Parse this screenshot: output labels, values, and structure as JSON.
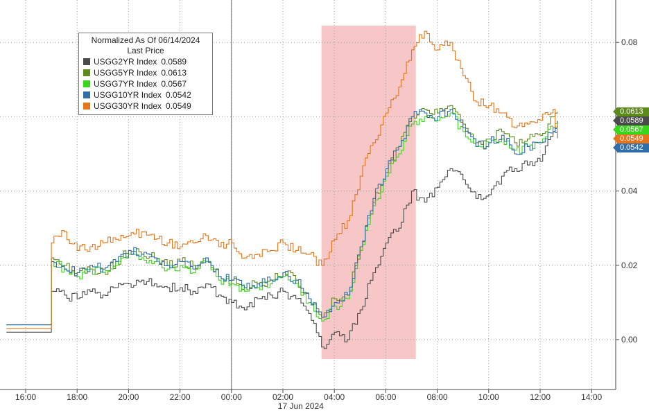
{
  "chart_data": {
    "type": "line",
    "title": "",
    "xlabel": "",
    "ylabel": "",
    "x_ticks": [
      "16:00",
      "18:00",
      "20:00",
      "22:00",
      "00:00",
      "02:00",
      "04:00",
      "06:00",
      "08:00",
      "10:00",
      "12:00",
      "14:00"
    ],
    "date_label": "17 Jun 2024",
    "y_ticks": [
      "0.00",
      "0.02",
      "0.04",
      "0.06",
      "0.08"
    ],
    "y_tick_values": [
      0.0,
      0.02,
      0.04,
      0.06,
      0.08
    ],
    "ylim": [
      -0.015,
      0.095
    ],
    "highlight_region": [
      "03:30",
      "07:10"
    ],
    "highlight_color": "#f7c6c6",
    "grid": true,
    "legend": {
      "placement": "top-left",
      "title_line1": "Normalized As Of 06/14/2024",
      "title_line2": "Last Price"
    },
    "series": [
      {
        "name": "USGG2YR Index",
        "last": "0.0589",
        "color": "#4a4a4a",
        "x": [
          "15:15",
          "17:00",
          "17:30",
          "18:00",
          "18:30",
          "19:00",
          "19:30",
          "20:00",
          "20:30",
          "21:00",
          "21:30",
          "22:00",
          "22:30",
          "23:00",
          "23:30",
          "00:00",
          "00:30",
          "01:00",
          "01:30",
          "02:00",
          "02:30",
          "03:00",
          "03:30",
          "04:00",
          "04:30",
          "05:00",
          "05:30",
          "06:00",
          "06:30",
          "07:00",
          "07:30",
          "08:00",
          "08:30",
          "09:00",
          "09:30",
          "10:00",
          "10:30",
          "11:00",
          "11:30",
          "12:00",
          "12:30",
          "12:40"
        ],
        "values": [
          0.002,
          0.013,
          0.012,
          0.011,
          0.013,
          0.012,
          0.014,
          0.015,
          0.016,
          0.015,
          0.014,
          0.014,
          0.013,
          0.015,
          0.012,
          0.01,
          0.008,
          0.011,
          0.012,
          0.013,
          0.011,
          0.007,
          -0.002,
          0.002,
          0.0,
          0.008,
          0.018,
          0.026,
          0.03,
          0.04,
          0.037,
          0.041,
          0.046,
          0.043,
          0.038,
          0.039,
          0.044,
          0.046,
          0.047,
          0.048,
          0.056,
          0.0589
        ]
      },
      {
        "name": "USGG5YR Index",
        "last": "0.0613",
        "color": "#5d8a1c",
        "x": [
          "15:15",
          "17:00",
          "17:30",
          "18:00",
          "18:30",
          "19:00",
          "19:30",
          "20:00",
          "20:30",
          "21:00",
          "21:30",
          "22:00",
          "22:30",
          "23:00",
          "23:30",
          "00:00",
          "00:30",
          "01:00",
          "01:30",
          "02:00",
          "02:30",
          "03:00",
          "03:30",
          "04:00",
          "04:30",
          "05:00",
          "05:30",
          "06:00",
          "06:30",
          "07:00",
          "07:30",
          "08:00",
          "08:30",
          "09:00",
          "09:30",
          "10:00",
          "10:30",
          "11:00",
          "11:30",
          "12:00",
          "12:30",
          "12:40"
        ],
        "values": [
          0.004,
          0.022,
          0.02,
          0.018,
          0.019,
          0.018,
          0.021,
          0.024,
          0.023,
          0.022,
          0.02,
          0.021,
          0.02,
          0.022,
          0.017,
          0.016,
          0.014,
          0.015,
          0.016,
          0.018,
          0.016,
          0.011,
          0.006,
          0.011,
          0.012,
          0.025,
          0.037,
          0.045,
          0.052,
          0.06,
          0.062,
          0.061,
          0.063,
          0.058,
          0.053,
          0.054,
          0.056,
          0.053,
          0.054,
          0.055,
          0.06,
          0.0613
        ]
      },
      {
        "name": "USGG7YR Index",
        "last": "0.0567",
        "color": "#39d61b",
        "x": [
          "15:15",
          "17:00",
          "17:30",
          "18:00",
          "18:30",
          "19:00",
          "19:30",
          "20:00",
          "20:30",
          "21:00",
          "21:30",
          "22:00",
          "22:30",
          "23:00",
          "23:30",
          "00:00",
          "00:30",
          "01:00",
          "01:30",
          "02:00",
          "02:30",
          "03:00",
          "03:30",
          "04:00",
          "04:30",
          "05:00",
          "05:30",
          "06:00",
          "06:30",
          "07:00",
          "07:30",
          "08:00",
          "08:30",
          "09:00",
          "09:30",
          "10:00",
          "10:30",
          "11:00",
          "11:30",
          "12:00",
          "12:30",
          "12:40"
        ],
        "values": [
          0.004,
          0.021,
          0.019,
          0.017,
          0.019,
          0.018,
          0.02,
          0.023,
          0.022,
          0.021,
          0.019,
          0.02,
          0.018,
          0.021,
          0.016,
          0.015,
          0.013,
          0.014,
          0.015,
          0.017,
          0.015,
          0.01,
          0.005,
          0.009,
          0.011,
          0.024,
          0.036,
          0.044,
          0.05,
          0.058,
          0.06,
          0.059,
          0.061,
          0.056,
          0.052,
          0.053,
          0.054,
          0.051,
          0.052,
          0.053,
          0.057,
          0.0567
        ]
      },
      {
        "name": "USGG10YR Index",
        "last": "0.0542",
        "color": "#2f6ea8",
        "x": [
          "15:15",
          "17:00",
          "17:30",
          "18:00",
          "18:30",
          "19:00",
          "19:30",
          "20:00",
          "20:30",
          "21:00",
          "21:30",
          "22:00",
          "22:30",
          "23:00",
          "23:30",
          "00:00",
          "00:30",
          "01:00",
          "01:30",
          "02:00",
          "02:30",
          "03:00",
          "03:30",
          "04:00",
          "04:30",
          "05:00",
          "05:30",
          "06:00",
          "06:30",
          "07:00",
          "07:30",
          "08:00",
          "08:30",
          "09:00",
          "09:30",
          "10:00",
          "10:30",
          "11:00",
          "11:30",
          "12:00",
          "12:30",
          "12:40"
        ],
        "values": [
          0.004,
          0.021,
          0.019,
          0.018,
          0.02,
          0.019,
          0.021,
          0.024,
          0.023,
          0.022,
          0.02,
          0.021,
          0.019,
          0.022,
          0.017,
          0.016,
          0.014,
          0.015,
          0.016,
          0.018,
          0.016,
          0.011,
          0.006,
          0.01,
          0.012,
          0.025,
          0.038,
          0.046,
          0.052,
          0.06,
          0.061,
          0.06,
          0.062,
          0.057,
          0.052,
          0.053,
          0.055,
          0.05,
          0.052,
          0.053,
          0.057,
          0.0542
        ]
      },
      {
        "name": "USGG30YR Index",
        "last": "0.0549",
        "color": "#e5751a",
        "x": [
          "15:15",
          "17:00",
          "17:30",
          "18:00",
          "18:30",
          "19:00",
          "19:30",
          "20:00",
          "20:30",
          "21:00",
          "21:30",
          "22:00",
          "22:30",
          "23:00",
          "23:30",
          "00:00",
          "00:30",
          "01:00",
          "01:30",
          "02:00",
          "02:30",
          "03:00",
          "03:30",
          "04:00",
          "04:30",
          "05:00",
          "05:30",
          "06:00",
          "06:30",
          "07:00",
          "07:30",
          "08:00",
          "08:30",
          "09:00",
          "09:30",
          "10:00",
          "10:30",
          "11:00",
          "11:30",
          "12:00",
          "12:30",
          "12:40"
        ],
        "values": [
          0.003,
          0.026,
          0.029,
          0.024,
          0.025,
          0.026,
          0.027,
          0.028,
          0.029,
          0.027,
          0.026,
          0.025,
          0.026,
          0.028,
          0.025,
          0.026,
          0.022,
          0.023,
          0.024,
          0.026,
          0.024,
          0.023,
          0.02,
          0.027,
          0.032,
          0.044,
          0.053,
          0.061,
          0.068,
          0.078,
          0.083,
          0.078,
          0.08,
          0.071,
          0.064,
          0.063,
          0.061,
          0.057,
          0.058,
          0.059,
          0.062,
          0.0549
        ]
      }
    ]
  }
}
